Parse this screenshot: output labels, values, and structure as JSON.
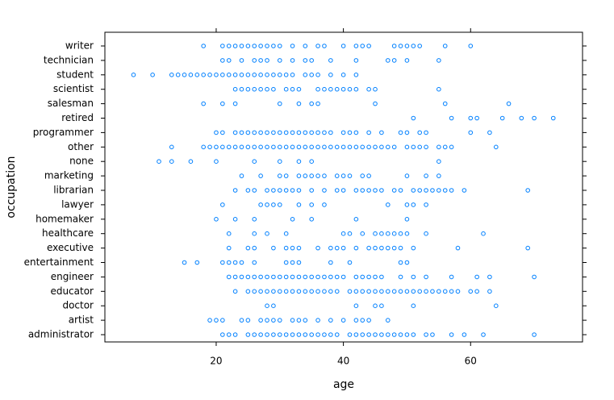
{
  "chart_data": {
    "type": "stripplot",
    "x_label": "age",
    "y_label": "occupation",
    "color": "#0080ff",
    "xlim": [
      2.5,
      77.6
    ],
    "xticks": [
      20,
      40,
      60
    ],
    "categories": [
      "administrator",
      "artist",
      "doctor",
      "educator",
      "engineer",
      "entertainment",
      "executive",
      "healthcare",
      "homemaker",
      "lawyer",
      "librarian",
      "marketing",
      "none",
      "other",
      "programmer",
      "retired",
      "salesman",
      "scientist",
      "student",
      "technician",
      "writer"
    ],
    "values": [
      [
        21,
        22,
        23,
        25,
        26,
        27,
        28,
        29,
        30,
        31,
        32,
        33,
        34,
        35,
        36,
        37,
        38,
        39,
        41,
        42,
        43,
        44,
        45,
        46,
        47,
        48,
        49,
        50,
        51,
        53,
        54,
        57,
        59,
        62,
        70
      ],
      [
        19,
        20,
        21,
        24,
        25,
        27,
        28,
        29,
        30,
        32,
        33,
        34,
        36,
        38,
        40,
        42,
        43,
        44,
        47
      ],
      [
        28,
        29,
        42,
        45,
        46,
        51,
        64
      ],
      [
        23,
        25,
        26,
        27,
        28,
        29,
        30,
        31,
        32,
        33,
        34,
        35,
        36,
        37,
        38,
        39,
        41,
        42,
        43,
        44,
        45,
        46,
        47,
        48,
        49,
        50,
        51,
        52,
        53,
        54,
        55,
        56,
        57,
        58,
        60,
        61,
        63
      ],
      [
        22,
        23,
        24,
        25,
        26,
        27,
        28,
        29,
        30,
        31,
        32,
        33,
        34,
        35,
        36,
        37,
        38,
        39,
        40,
        42,
        43,
        44,
        45,
        46,
        49,
        51,
        53,
        57,
        61,
        63,
        70
      ],
      [
        15,
        17,
        21,
        22,
        23,
        24,
        26,
        31,
        32,
        33,
        38,
        41,
        49,
        50
      ],
      [
        22,
        25,
        26,
        29,
        31,
        32,
        33,
        36,
        38,
        39,
        40,
        42,
        44,
        45,
        46,
        47,
        48,
        49,
        51,
        58,
        69
      ],
      [
        22,
        26,
        28,
        31,
        40,
        41,
        43,
        45,
        46,
        47,
        48,
        49,
        50,
        53,
        62
      ],
      [
        20,
        23,
        26,
        32,
        35,
        42,
        50
      ],
      [
        21,
        27,
        28,
        29,
        30,
        33,
        35,
        37,
        47,
        50,
        51,
        53
      ],
      [
        23,
        25,
        26,
        28,
        29,
        30,
        31,
        32,
        33,
        35,
        37,
        39,
        40,
        42,
        43,
        44,
        45,
        46,
        48,
        49,
        51,
        52,
        53,
        54,
        55,
        56,
        57,
        59,
        69
      ],
      [
        24,
        27,
        30,
        31,
        33,
        34,
        35,
        36,
        37,
        39,
        40,
        41,
        43,
        44,
        50,
        53,
        55
      ],
      [
        11,
        13,
        16,
        20,
        26,
        30,
        33,
        35,
        55
      ],
      [
        13,
        18,
        19,
        20,
        21,
        22,
        23,
        24,
        25,
        26,
        27,
        28,
        29,
        30,
        31,
        32,
        33,
        34,
        35,
        36,
        37,
        38,
        39,
        40,
        41,
        42,
        43,
        44,
        45,
        46,
        47,
        48,
        50,
        51,
        52,
        53,
        55,
        56,
        57,
        64
      ],
      [
        20,
        21,
        23,
        24,
        25,
        26,
        27,
        28,
        29,
        30,
        31,
        32,
        33,
        34,
        35,
        36,
        37,
        38,
        40,
        41,
        42,
        44,
        46,
        49,
        50,
        52,
        53,
        60,
        63
      ],
      [
        51,
        57,
        60,
        61,
        65,
        68,
        70,
        73
      ],
      [
        18,
        21,
        23,
        30,
        33,
        35,
        36,
        45,
        56,
        66
      ],
      [
        23,
        24,
        25,
        26,
        27,
        28,
        29,
        31,
        32,
        33,
        36,
        37,
        38,
        39,
        40,
        41,
        42,
        44,
        45,
        55
      ],
      [
        7,
        10,
        13,
        14,
        15,
        16,
        17,
        18,
        19,
        20,
        21,
        22,
        23,
        24,
        25,
        26,
        27,
        28,
        29,
        30,
        31,
        32,
        34,
        35,
        36,
        38,
        40,
        42
      ],
      [
        21,
        22,
        24,
        26,
        27,
        28,
        30,
        32,
        34,
        35,
        38,
        42,
        47,
        48,
        50,
        55
      ],
      [
        18,
        21,
        22,
        23,
        24,
        25,
        26,
        27,
        28,
        29,
        30,
        32,
        34,
        36,
        37,
        40,
        42,
        43,
        44,
        48,
        49,
        50,
        51,
        52,
        56,
        60
      ]
    ]
  }
}
